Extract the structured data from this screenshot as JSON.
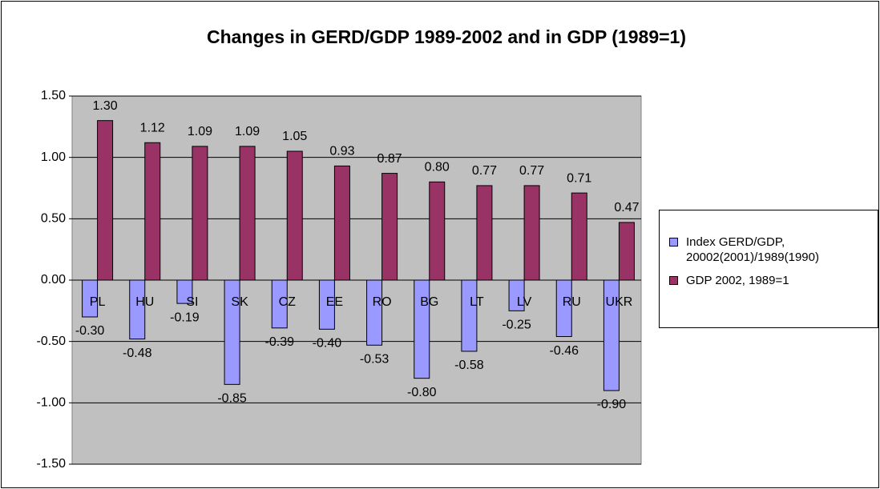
{
  "chart_data": {
    "type": "bar",
    "title": "Changes in GERD/GDP 1989-2002 and in GDP (1989=1)",
    "categories": [
      "PL",
      "HU",
      "SI",
      "SK",
      "CZ",
      "EE",
      "RO",
      "BG",
      "LT",
      "LV",
      "RU",
      "UKR"
    ],
    "series": [
      {
        "name": "Index GERD/GDP, 20002(2001)/1989(1990)",
        "color": "#9999ff",
        "values": [
          -0.3,
          -0.48,
          -0.19,
          -0.85,
          -0.39,
          -0.4,
          -0.53,
          -0.8,
          -0.58,
          -0.25,
          -0.46,
          -0.9
        ],
        "value_labels": [
          "-0.30",
          "-0.48",
          "-0.19",
          "-0.85",
          "-0.39",
          "-0.40",
          "-0.53",
          "-0.80",
          "-0.58",
          "-0.25",
          "-0.46",
          "-0.90"
        ]
      },
      {
        "name": "GDP 2002, 1989=1",
        "color": "#993366",
        "values": [
          1.3,
          1.12,
          1.09,
          1.09,
          1.05,
          0.93,
          0.87,
          0.8,
          0.77,
          0.77,
          0.71,
          0.47
        ],
        "value_labels": [
          "1.30",
          "1.12",
          "1.09",
          "1.09",
          "1.05",
          "0.93",
          "0.87",
          "0.80",
          "0.77",
          "0.77",
          "0.71",
          "0.47"
        ]
      }
    ],
    "ylim": [
      -1.5,
      1.5
    ],
    "yticks": [
      {
        "value": -1.5,
        "label": "-1.50"
      },
      {
        "value": -1,
        "label": "-1.00"
      },
      {
        "value": -0.5,
        "label": "-0.50"
      },
      {
        "value": 0,
        "label": "0.00"
      },
      {
        "value": 0.5,
        "label": "0.50"
      },
      {
        "value": 1,
        "label": "1.00"
      },
      {
        "value": 1.5,
        "label": "1.50"
      }
    ],
    "grid": true,
    "legend": "right"
  }
}
